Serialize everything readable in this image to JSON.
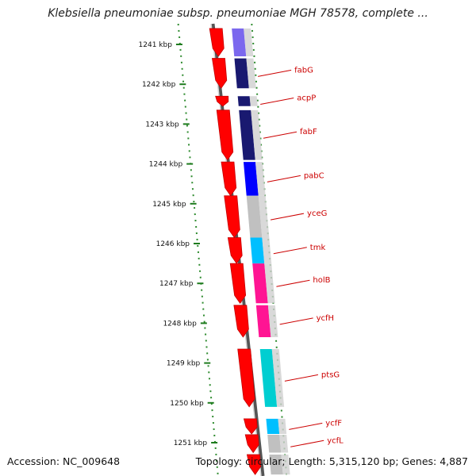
{
  "title": "Klebsiella pneumoniae subsp. pneumoniae MGH 78578, complete ...",
  "footer": {
    "accession": "Accession: NC_009648",
    "summary": "Topology: circular; Length: 5,315,120 bp; Genes: 4,887"
  },
  "chart_data": {
    "type": "genome-map",
    "unit": "kbp",
    "tick_labels": [
      "1241 kbp",
      "1242 kbp",
      "1243 kbp",
      "1244 kbp",
      "1245 kbp",
      "1246 kbp",
      "1247 kbp",
      "1248 kbp",
      "1249 kbp",
      "1250 kbp",
      "1251 kbp"
    ],
    "tick_values": [
      1241,
      1242,
      1243,
      1244,
      1245,
      1246,
      1247,
      1248,
      1249,
      1250,
      1251
    ],
    "visible_range": [
      1240.6,
      1251.8
    ],
    "genes": [
      {
        "label": "",
        "start": 1240.6,
        "end": 1241.3,
        "color": "#7b68ee"
      },
      {
        "label": "fabG",
        "start": 1241.35,
        "end": 1242.1,
        "color": "#191970"
      },
      {
        "label": "acpP",
        "start": 1242.3,
        "end": 1242.55,
        "color": "#191970"
      },
      {
        "label": "fabF",
        "start": 1242.65,
        "end": 1243.9,
        "color": "#191970"
      },
      {
        "label": "pabC",
        "start": 1243.95,
        "end": 1244.8,
        "color": "#0000ff"
      },
      {
        "label": "yceG",
        "start": 1244.8,
        "end": 1245.85,
        "color": "#c0c0c0"
      },
      {
        "label": "tmk",
        "start": 1245.85,
        "end": 1246.5,
        "color": "#00bfff"
      },
      {
        "label": "holB",
        "start": 1246.5,
        "end": 1247.5,
        "color": "#ff1493"
      },
      {
        "label": "ycfH",
        "start": 1247.55,
        "end": 1248.35,
        "color": "#ff1493"
      },
      {
        "label": "ptsG",
        "start": 1248.65,
        "end": 1250.1,
        "color": "#00ced1"
      },
      {
        "label": "ycfF",
        "start": 1250.4,
        "end": 1250.78,
        "color": "#00bfff"
      },
      {
        "label": "ycfL",
        "start": 1250.8,
        "end": 1251.25,
        "color": "#c0c0c0"
      },
      {
        "label": "",
        "start": 1251.3,
        "end": 1251.8,
        "color": "#c0c0c0"
      }
    ]
  }
}
